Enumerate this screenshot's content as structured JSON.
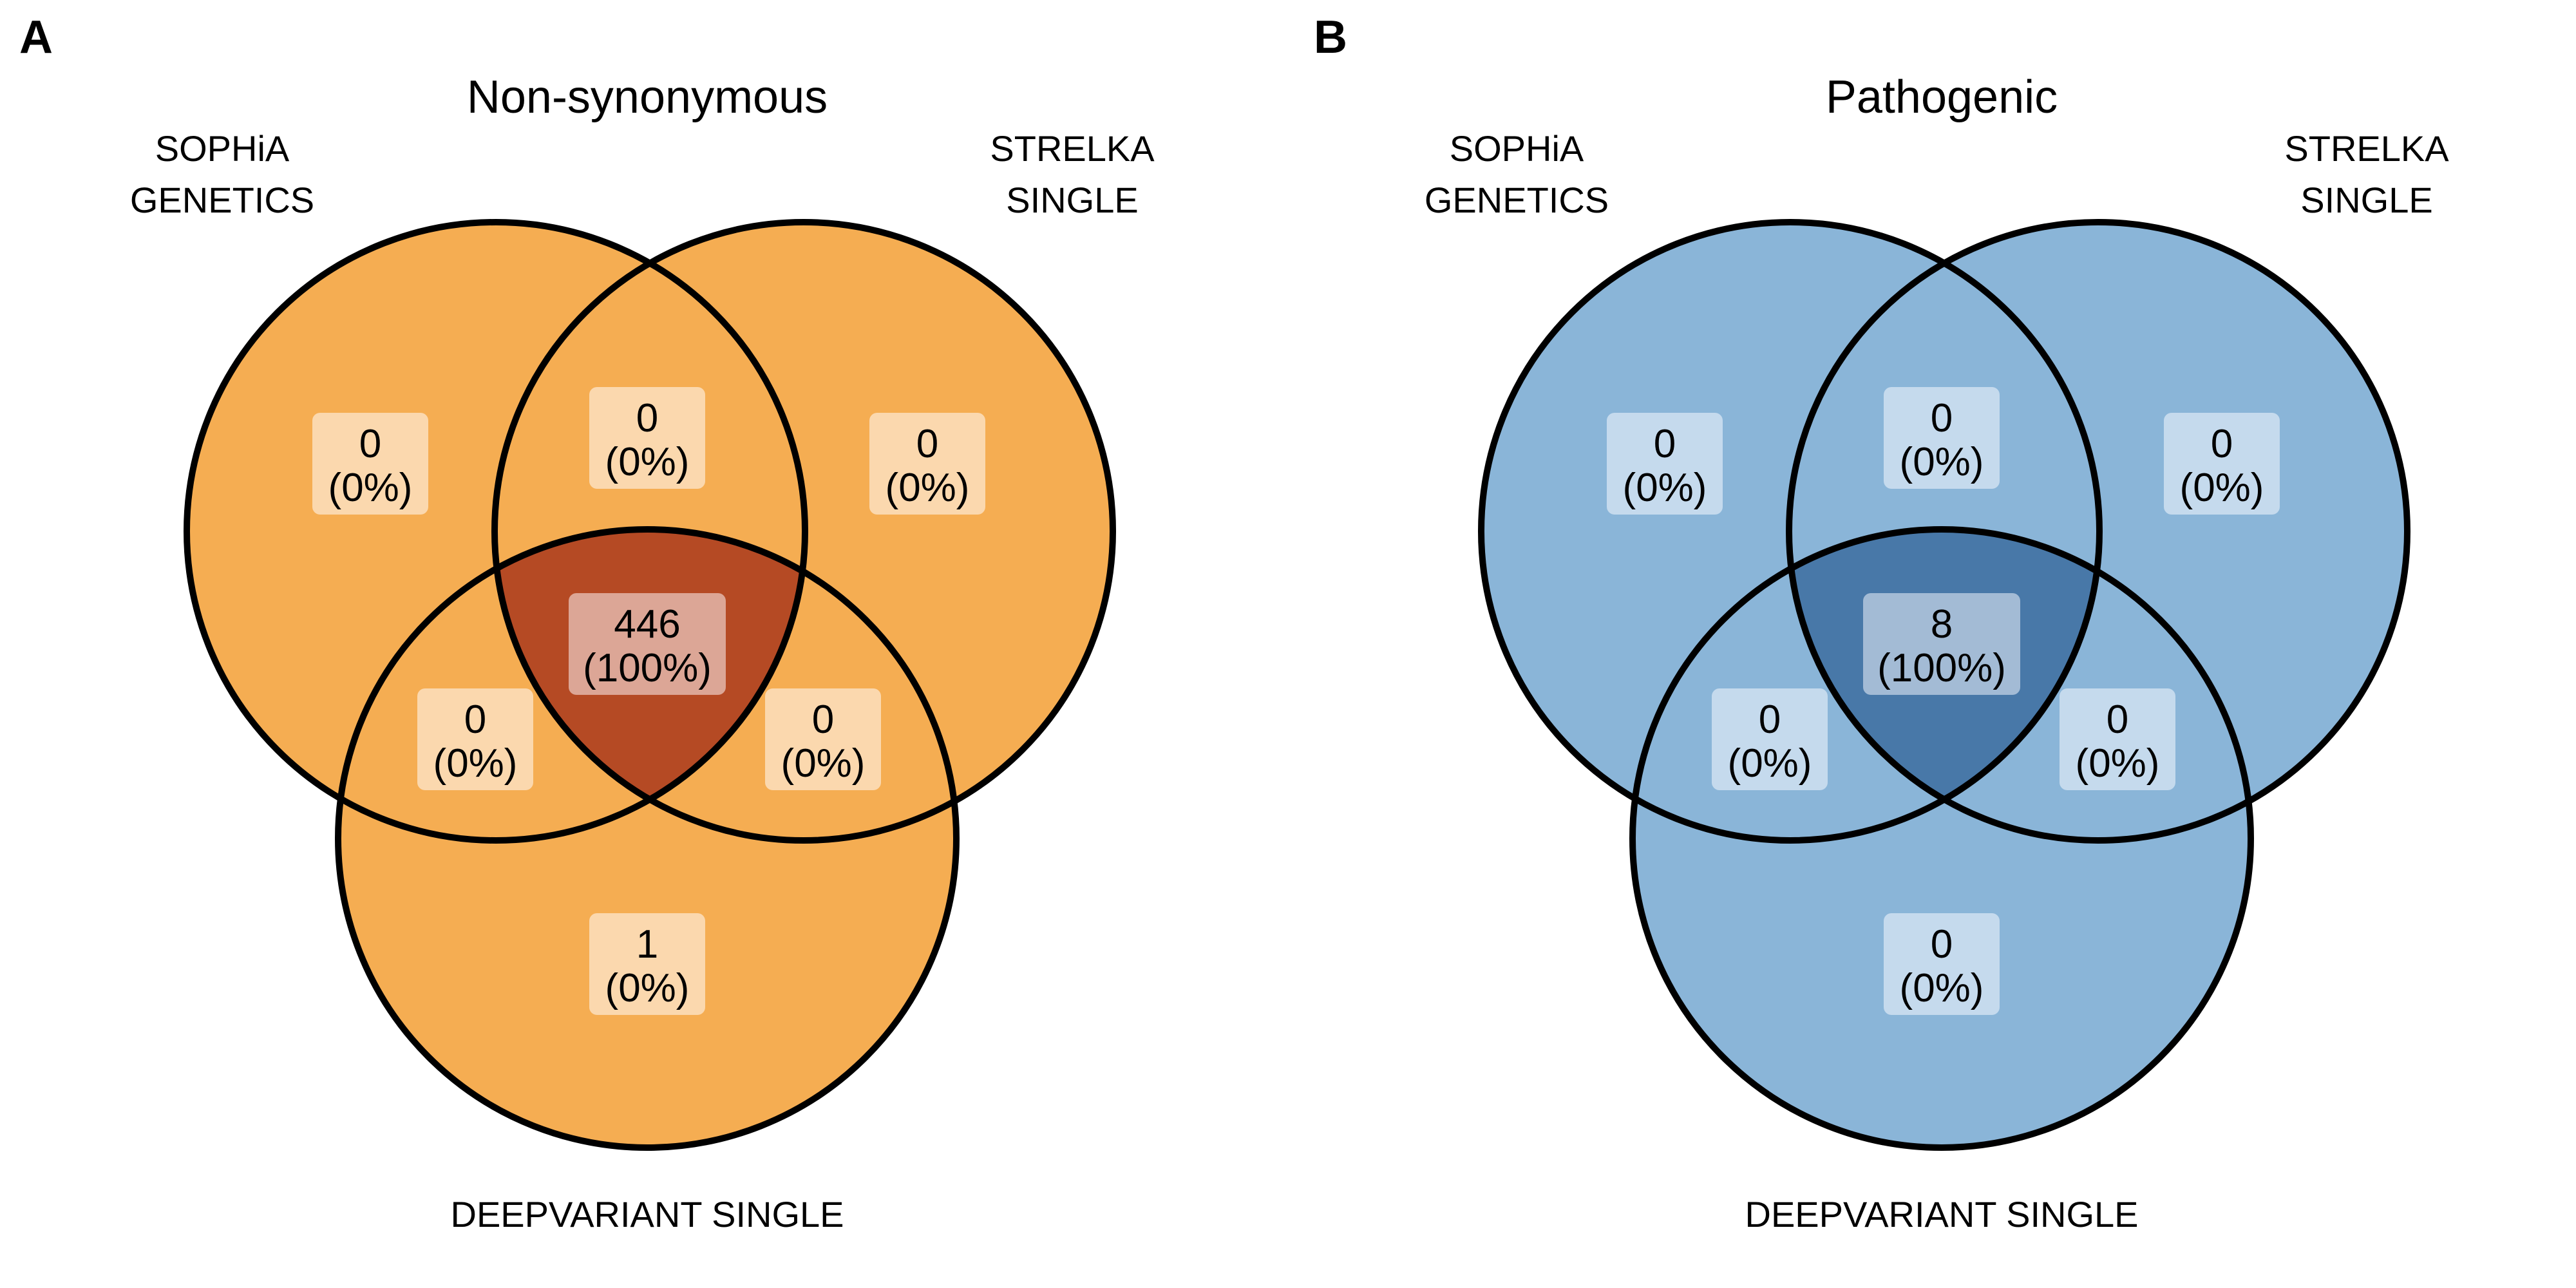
{
  "panels": [
    {
      "letter": "A",
      "title": "Non-synonymous",
      "sets": {
        "a": [
          "SOPHiA",
          "GENETICS"
        ],
        "b": [
          "STRELKA",
          "SINGLE"
        ],
        "c": [
          "DEEPVARIANT SINGLE"
        ]
      },
      "colors": {
        "fill": "#f5ad52",
        "intersection": "#b54a24",
        "label_box": "#fbd8ae",
        "label_box_center": "#dca696"
      },
      "regions": {
        "a_only": {
          "count": "0",
          "pct": "(0%)"
        },
        "ab_only": {
          "count": "0",
          "pct": "(0%)"
        },
        "b_only": {
          "count": "0",
          "pct": "(0%)"
        },
        "abc": {
          "count": "446",
          "pct": "(100%)"
        },
        "ac_only": {
          "count": "0",
          "pct": "(0%)"
        },
        "bc_only": {
          "count": "0",
          "pct": "(0%)"
        },
        "c_only": {
          "count": "1",
          "pct": "(0%)"
        }
      }
    },
    {
      "letter": "B",
      "title": "Pathogenic",
      "sets": {
        "a": [
          "SOPHiA",
          "GENETICS"
        ],
        "b": [
          "STRELKA",
          "SINGLE"
        ],
        "c": [
          "DEEPVARIANT SINGLE"
        ]
      },
      "colors": {
        "fill": "#8ab5d8",
        "intersection": "#4878a8",
        "label_box": "#c5daed",
        "label_box_center": "#a3bbd5"
      },
      "regions": {
        "a_only": {
          "count": "0",
          "pct": "(0%)"
        },
        "ab_only": {
          "count": "0",
          "pct": "(0%)"
        },
        "b_only": {
          "count": "0",
          "pct": "(0%)"
        },
        "abc": {
          "count": "8",
          "pct": "(100%)"
        },
        "ac_only": {
          "count": "0",
          "pct": "(0%)"
        },
        "bc_only": {
          "count": "0",
          "pct": "(0%)"
        },
        "c_only": {
          "count": "0",
          "pct": "(0%)"
        }
      }
    }
  ]
}
